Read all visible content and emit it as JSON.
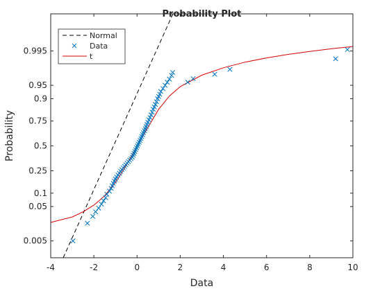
{
  "chart_data": {
    "type": "scatter",
    "title": "Probability Plot",
    "xlabel": "Data",
    "ylabel": "Probability",
    "xlim": [
      -4,
      10
    ],
    "xticks": [
      -4,
      -2,
      0,
      2,
      4,
      6,
      8,
      10
    ],
    "yticks": [
      0.005,
      0.05,
      0.1,
      0.25,
      0.5,
      0.75,
      0.9,
      0.95,
      0.995
    ],
    "ytick_labels": [
      "0.005",
      "0.05",
      "0.1",
      "0.25",
      "0.5",
      "0.75",
      "0.9",
      "0.95",
      "0.995"
    ],
    "grid": false,
    "legend": {
      "position": "top-left",
      "entries": [
        {
          "label": "Normal",
          "style": "dashed-line",
          "color": "#000000"
        },
        {
          "label": "Data",
          "style": "x-marker",
          "color": "#0072BD"
        },
        {
          "label": "t",
          "style": "line",
          "color": "#D90000"
        }
      ]
    },
    "series": [
      {
        "name": "Data",
        "kind": "points",
        "color": "#0072BD",
        "x": [
          -2.97,
          -2.3,
          -2.05,
          -1.92,
          -1.78,
          -1.65,
          -1.55,
          -1.45,
          -1.4,
          -1.28,
          -1.2,
          -1.15,
          -1.1,
          -1.05,
          -1.0,
          -0.95,
          -0.88,
          -0.82,
          -0.76,
          -0.7,
          -0.64,
          -0.58,
          -0.52,
          -0.46,
          -0.4,
          -0.34,
          -0.28,
          -0.22,
          -0.18,
          -0.14,
          -0.1,
          -0.06,
          -0.02,
          0.02,
          0.06,
          0.1,
          0.14,
          0.18,
          0.22,
          0.26,
          0.3,
          0.34,
          0.38,
          0.42,
          0.46,
          0.5,
          0.55,
          0.6,
          0.65,
          0.7,
          0.75,
          0.8,
          0.85,
          0.9,
          0.95,
          1.0,
          1.05,
          1.1,
          1.2,
          1.3,
          1.4,
          1.5,
          1.6,
          1.65,
          2.35,
          2.6,
          3.6,
          4.3,
          9.2,
          9.75
        ],
        "y": [
          0.005,
          0.018,
          0.028,
          0.037,
          0.046,
          0.057,
          0.068,
          0.08,
          0.095,
          0.11,
          0.125,
          0.14,
          0.155,
          0.17,
          0.185,
          0.2,
          0.215,
          0.23,
          0.245,
          0.26,
          0.275,
          0.29,
          0.305,
          0.32,
          0.335,
          0.35,
          0.365,
          0.38,
          0.4,
          0.42,
          0.44,
          0.46,
          0.48,
          0.5,
          0.52,
          0.54,
          0.56,
          0.58,
          0.6,
          0.62,
          0.64,
          0.66,
          0.68,
          0.7,
          0.72,
          0.74,
          0.76,
          0.78,
          0.8,
          0.82,
          0.84,
          0.855,
          0.87,
          0.885,
          0.9,
          0.91,
          0.92,
          0.93,
          0.94,
          0.95,
          0.958,
          0.965,
          0.972,
          0.977,
          0.958,
          0.966,
          0.974,
          0.981,
          0.991,
          0.9955
        ]
      },
      {
        "name": "Normal",
        "kind": "line",
        "color": "#000000",
        "x": [
          -3.42,
          1.66
        ],
        "y": [
          0.00121,
          0.99983
        ]
      },
      {
        "name": "t",
        "kind": "line",
        "color": "#D90000",
        "x": [
          -4,
          -3,
          -2.5,
          -2,
          -1.5,
          -1,
          -0.5,
          0,
          0.5,
          1,
          1.5,
          2,
          3,
          4,
          5,
          6,
          7,
          8,
          9,
          10
        ],
        "y": [
          0.019,
          0.027,
          0.037,
          0.054,
          0.088,
          0.16,
          0.3,
          0.5,
          0.69,
          0.84,
          0.912,
          0.946,
          0.9725,
          0.983,
          0.9885,
          0.9915,
          0.9935,
          0.9948,
          0.9958,
          0.9965
        ]
      }
    ]
  }
}
